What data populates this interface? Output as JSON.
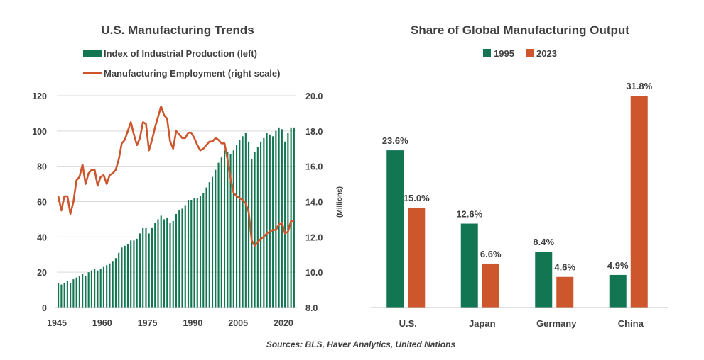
{
  "source": "Sources: BLS, Haver Analytics, United Nations",
  "chart_data": [
    {
      "type": "bar+line",
      "title": "U.S. Manufacturing  Trends",
      "y_left_ticks": [
        "0",
        "20",
        "40",
        "60",
        "80",
        "100",
        "120"
      ],
      "y_right_ticks": [
        "8.0",
        "10.0",
        "12.0",
        "14.0",
        "16.0",
        "18.0",
        "20.0"
      ],
      "y_right_label": "(Millions)",
      "x_ticks": [
        "1945",
        "1960",
        "1975",
        "1990",
        "2005",
        "2020"
      ],
      "ylim_left": [
        0,
        120
      ],
      "ylim_right": [
        8,
        20
      ],
      "xlim": [
        1945,
        2024
      ],
      "series": [
        {
          "name": "Index of Industrial Production (left)",
          "type": "bar",
          "color": "#127652",
          "x": [
            1945,
            1946,
            1947,
            1948,
            1949,
            1950,
            1951,
            1952,
            1953,
            1954,
            1955,
            1956,
            1957,
            1958,
            1959,
            1960,
            1961,
            1962,
            1963,
            1964,
            1965,
            1966,
            1967,
            1968,
            1969,
            1970,
            1971,
            1972,
            1973,
            1974,
            1975,
            1976,
            1977,
            1978,
            1979,
            1980,
            1981,
            1982,
            1983,
            1984,
            1985,
            1986,
            1987,
            1988,
            1989,
            1990,
            1991,
            1992,
            1993,
            1994,
            1995,
            1996,
            1997,
            1998,
            1999,
            2000,
            2001,
            2002,
            2003,
            2004,
            2005,
            2006,
            2007,
            2008,
            2009,
            2010,
            2011,
            2012,
            2013,
            2014,
            2015,
            2016,
            2017,
            2018,
            2019,
            2020,
            2021,
            2022,
            2023
          ],
          "values": [
            14,
            13,
            14,
            15,
            14,
            16,
            17,
            18,
            19,
            18,
            20,
            21,
            22,
            21,
            22,
            23,
            24,
            25,
            26,
            28,
            31,
            34,
            35,
            36,
            38,
            38,
            39,
            42,
            45,
            45,
            42,
            45,
            48,
            50,
            52,
            50,
            51,
            48,
            49,
            53,
            55,
            56,
            58,
            61,
            61,
            62,
            62,
            63,
            65,
            68,
            71,
            74,
            78,
            82,
            85,
            89,
            88,
            87,
            89,
            92,
            95,
            97,
            99,
            94,
            84,
            88,
            91,
            94,
            96,
            99,
            98,
            97,
            100,
            102,
            101,
            94,
            99,
            102,
            102
          ]
        },
        {
          "name": "Manufacturing Employment (right scale)",
          "type": "line",
          "color": "#cd562c",
          "x": [
            1945,
            1946,
            1947,
            1948,
            1949,
            1950,
            1951,
            1952,
            1953,
            1954,
            1955,
            1956,
            1957,
            1958,
            1959,
            1960,
            1961,
            1962,
            1963,
            1964,
            1965,
            1966,
            1967,
            1968,
            1969,
            1970,
            1971,
            1972,
            1973,
            1974,
            1975,
            1976,
            1977,
            1978,
            1979,
            1980,
            1981,
            1982,
            1983,
            1984,
            1985,
            1986,
            1987,
            1988,
            1989,
            1990,
            1991,
            1992,
            1993,
            1994,
            1995,
            1996,
            1997,
            1998,
            1999,
            2000,
            2001,
            2002,
            2003,
            2004,
            2005,
            2006,
            2007,
            2008,
            2009,
            2010,
            2011,
            2012,
            2013,
            2014,
            2015,
            2016,
            2017,
            2018,
            2019,
            2020,
            2021,
            2022,
            2023
          ],
          "values": [
            14.3,
            13.5,
            14.3,
            14.3,
            13.3,
            14.0,
            15.2,
            15.4,
            16.1,
            15.0,
            15.6,
            15.8,
            15.8,
            14.9,
            15.4,
            15.5,
            15.0,
            15.5,
            15.6,
            15.8,
            16.4,
            17.3,
            17.5,
            18.0,
            18.5,
            17.8,
            17.2,
            17.6,
            18.5,
            18.4,
            16.9,
            17.5,
            18.2,
            18.8,
            19.4,
            18.9,
            18.7,
            17.4,
            17.0,
            18.0,
            17.8,
            17.6,
            17.6,
            17.9,
            17.9,
            17.6,
            17.2,
            16.9,
            17.0,
            17.2,
            17.4,
            17.4,
            17.6,
            17.5,
            17.3,
            17.3,
            16.4,
            15.3,
            14.5,
            14.3,
            14.2,
            14.1,
            13.9,
            13.4,
            11.8,
            11.5,
            11.7,
            11.9,
            12.0,
            12.2,
            12.3,
            12.4,
            12.4,
            12.7,
            12.8,
            12.2,
            12.3,
            12.9,
            12.9
          ]
        }
      ]
    },
    {
      "type": "bar",
      "title": "Share of Global Manufacturing  Output",
      "categories": [
        "U.S.",
        "Japan",
        "Germany",
        "China"
      ],
      "ylim": [
        0,
        31.8
      ],
      "series": [
        {
          "name": "1995",
          "color": "#127652",
          "values": [
            23.6,
            12.6,
            8.4,
            4.9
          ],
          "labels": [
            "23.6%",
            "12.6%",
            "8.4%",
            "4.9%"
          ]
        },
        {
          "name": "2023",
          "color": "#cd562c",
          "values": [
            15.0,
            6.6,
            4.6,
            31.8
          ],
          "labels": [
            "15.0%",
            "6.6%",
            "4.6%",
            "31.8%"
          ]
        }
      ]
    }
  ]
}
